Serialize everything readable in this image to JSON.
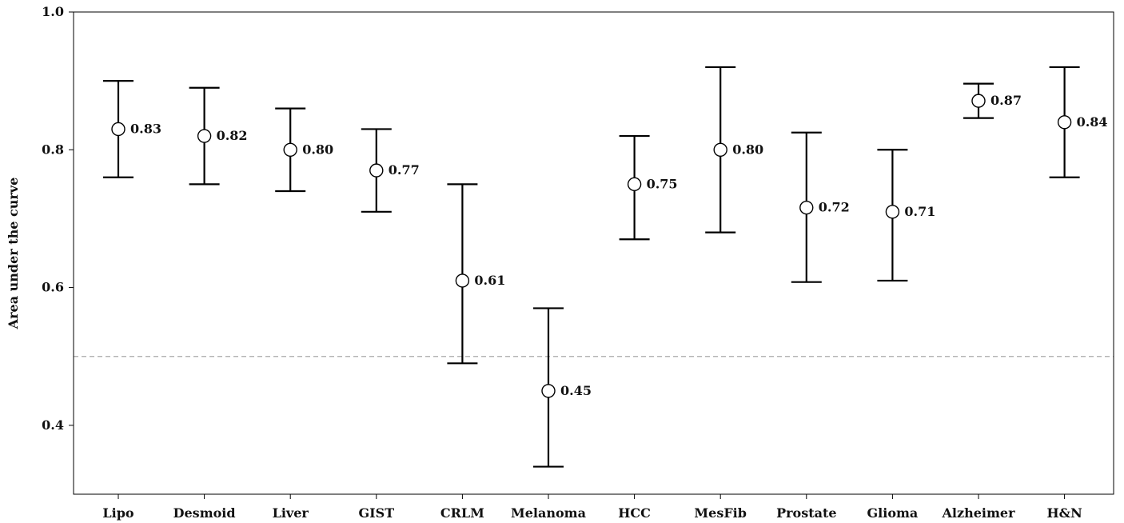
{
  "chart_data": {
    "type": "scatter",
    "title": "",
    "xlabel": "",
    "ylabel": "Area under the curve",
    "ylim": [
      0.3,
      1.0
    ],
    "yticks": [
      0.4,
      0.6,
      0.8,
      1.0
    ],
    "ytick_labels": [
      "0.4",
      "0.6",
      "0.8",
      "1.0"
    ],
    "reference_line": {
      "y": 0.5,
      "style": "dashed",
      "color": "#aaaaaa"
    },
    "categories": [
      "Lipo",
      "Desmoid",
      "Liver",
      "GIST",
      "CRLM",
      "Melanoma",
      "HCC",
      "MesFib",
      "Prostate",
      "Glioma",
      "Alzheimer",
      "H&N"
    ],
    "values": [
      0.83,
      0.82,
      0.8,
      0.77,
      0.61,
      0.45,
      0.75,
      0.8,
      0.716,
      0.71,
      0.871,
      0.84
    ],
    "value_labels": [
      "0.83",
      "0.82",
      "0.80",
      "0.77",
      "0.61",
      "0.45",
      "0.75",
      "0.80",
      "0.72",
      "0.71",
      "0.87",
      "0.84"
    ],
    "lower": [
      0.76,
      0.75,
      0.74,
      0.71,
      0.49,
      0.34,
      0.67,
      0.68,
      0.608,
      0.61,
      0.846,
      0.76
    ],
    "upper": [
      0.9,
      0.89,
      0.86,
      0.83,
      0.75,
      0.57,
      0.82,
      0.92,
      0.825,
      0.8,
      0.896,
      0.92
    ],
    "grid": false,
    "legend": "none",
    "colors": {
      "error_bar": "#000000",
      "marker_fill": "#ffffff",
      "marker_stroke": "#000000"
    }
  }
}
